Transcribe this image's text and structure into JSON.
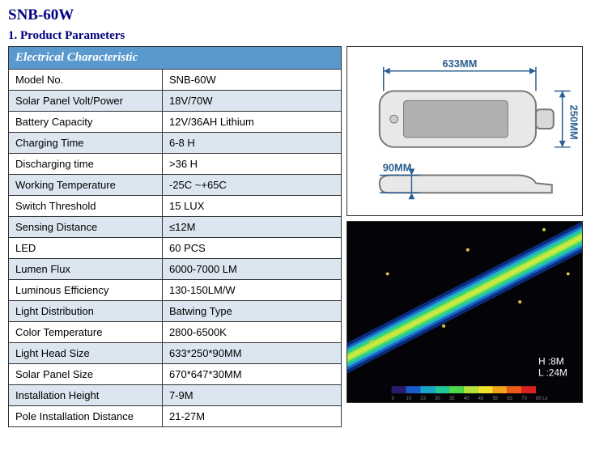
{
  "title": "SNB-60W",
  "section_heading": "1. Product Parameters",
  "specs": {
    "header": "Electrical Characteristic",
    "rows": [
      {
        "label": "Model No.",
        "value": "SNB-60W"
      },
      {
        "label": "Solar Panel Volt/Power",
        "value": "18V/70W"
      },
      {
        "label": "Battery Capacity",
        "value": "12V/36AH Lithium"
      },
      {
        "label": "Charging Time",
        "value": "6-8 H"
      },
      {
        "label": "Discharging time",
        "value": ">36 H"
      },
      {
        "label": "Working Temperature",
        "value": "-25C ~+65C"
      },
      {
        "label": "Switch Threshold",
        "value": "15 LUX"
      },
      {
        "label": "Sensing Distance",
        "value": "≤12M"
      },
      {
        "label": "LED",
        "value": "60 PCS"
      },
      {
        "label": "Lumen Flux",
        "value": "6000-7000 LM"
      },
      {
        "label": "Luminous Efficiency",
        "value": "130-150LM/W"
      },
      {
        "label": "Light Distribution",
        "value": "Batwing Type"
      },
      {
        "label": "Color Temperature",
        "value": "2800-6500K"
      },
      {
        "label": "Light Head Size",
        "value": "633*250*90MM"
      },
      {
        "label": "Solar Panel Size",
        "value": "670*647*30MM"
      },
      {
        "label": "Installation Height",
        "value": "7-9M"
      },
      {
        "label": "Pole Installation Distance",
        "value": "21-27M"
      }
    ]
  },
  "diagram": {
    "width_label": "633MM",
    "height_label": "250MM",
    "depth_label": "90MM",
    "line_color": "#2a5f8f",
    "body_fill": "#e8e8e8",
    "body_stroke": "#777"
  },
  "heatmap": {
    "background": "#030308",
    "info_h": "H :8M",
    "info_l": "L :24M",
    "beam_colors": [
      "#0a2b7a",
      "#1a63c2",
      "#23b4c9",
      "#39d671",
      "#a8e84a",
      "#f1e83a"
    ],
    "scale_values": [
      "0",
      "10",
      "23",
      "30",
      "35",
      "40",
      "45",
      "55",
      "63",
      "70",
      "80"
    ],
    "scale_unit": "Lx",
    "scale_colors": [
      "#2a1a6e",
      "#1a5bcc",
      "#1aa3c9",
      "#22c79a",
      "#4dd94a",
      "#b2e23a",
      "#f2e22a",
      "#f2a21a",
      "#ee5a1a",
      "#d92020"
    ]
  }
}
